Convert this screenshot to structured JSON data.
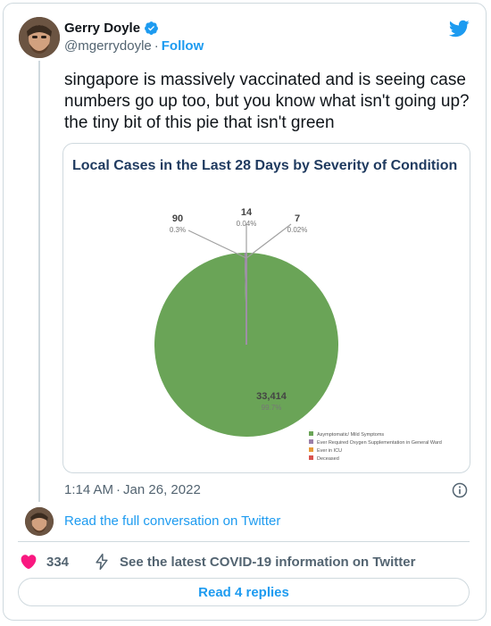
{
  "tweet": {
    "author_name": "Gerry Doyle",
    "handle": "@mgerrydoyle",
    "separator": "·",
    "follow_label": "Follow",
    "text": "singapore is massively vaccinated and is seeing case numbers go up too, but you know what isn't going up? the tiny bit of this pie that isn't green",
    "time": "1:14 AM",
    "date": "Jan 26, 2022",
    "read_full_label": "Read the full conversation on Twitter",
    "like_count": "334",
    "covid_info_label": "See the latest COVID-19 information on Twitter",
    "read_replies_label": "Read 4 replies"
  },
  "colors": {
    "accent": "#1d9bf0",
    "like": "#f91880",
    "pie_green": "#6aa457",
    "pie_purple": "#9b7fa8",
    "pie_orange": "#e69b3a",
    "pie_red": "#d9534f"
  },
  "icons": {
    "verified": "verified-badge-icon",
    "brand": "twitter-bird-icon",
    "info": "info-icon",
    "like": "heart-icon",
    "covid": "lightning-icon"
  },
  "chart_data": {
    "type": "pie",
    "title": "Local Cases in the Last 28 Days by Severity of Condition",
    "series": [
      {
        "name": "Asymptomatic/ Mild Symptoms",
        "value": 33414,
        "label": "33,414",
        "percent": "99.7%",
        "color": "#6aa457"
      },
      {
        "name": "Ever Required Oxygen Supplementation in General Ward",
        "value": 90,
        "label": "90",
        "percent": "0.3%",
        "color": "#9b7fa8"
      },
      {
        "name": "Ever in ICU",
        "value": 14,
        "label": "14",
        "percent": "0.04%",
        "color": "#e69b3a"
      },
      {
        "name": "Deceased",
        "value": 7,
        "label": "7",
        "percent": "0.02%",
        "color": "#d9534f"
      }
    ],
    "legend_position": "bottom-right"
  }
}
